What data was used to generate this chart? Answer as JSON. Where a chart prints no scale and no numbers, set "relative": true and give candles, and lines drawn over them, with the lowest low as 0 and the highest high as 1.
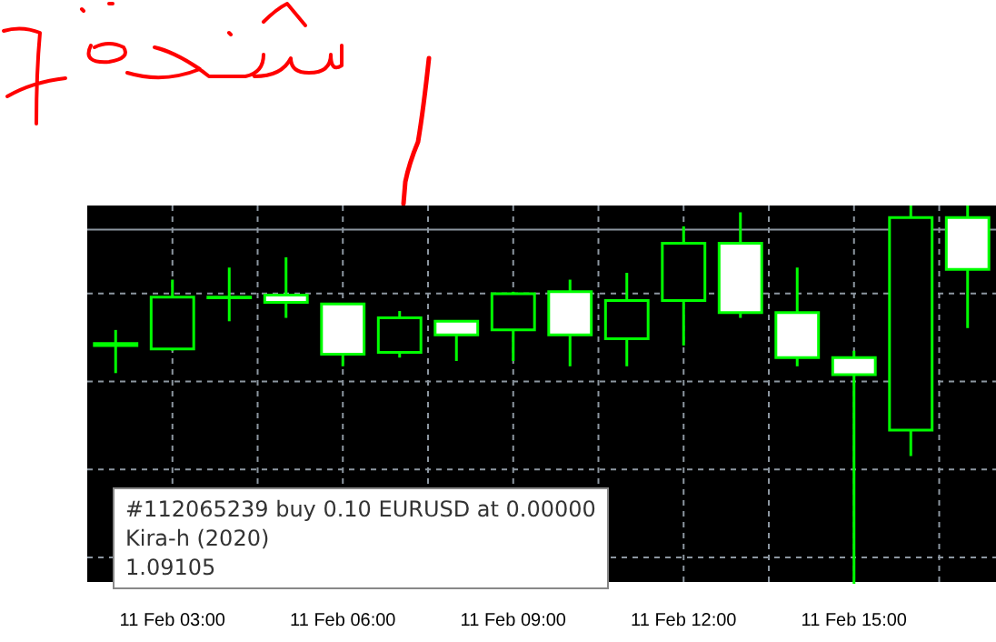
{
  "chart_data": {
    "type": "candlestick",
    "relative": true,
    "color": "#00ff00",
    "grid": true,
    "tick_labels": "x",
    "categories": [
      null,
      "11 Feb 03:00",
      null,
      null,
      "11 Feb 06:00",
      null,
      null,
      "11 Feb 09:00",
      null,
      null,
      "11 Feb 12:00",
      null,
      null,
      "11 Feb 15:00",
      null,
      null
    ],
    "ohlc": [
      [
        0.635,
        0.671,
        0.557,
        0.63
      ],
      [
        0.621,
        0.804,
        0.616,
        0.758
      ],
      [
        0.758,
        0.836,
        0.694,
        0.756
      ],
      [
        0.763,
        0.863,
        0.703,
        0.744
      ],
      [
        0.74,
        0.74,
        0.575,
        0.607
      ],
      [
        0.612,
        0.721,
        0.598,
        0.703
      ],
      [
        0.694,
        0.694,
        0.589,
        0.658
      ],
      [
        0.671,
        0.772,
        0.589,
        0.767
      ],
      [
        0.772,
        0.804,
        0.575,
        0.658
      ],
      [
        0.648,
        0.822,
        0.575,
        0.749
      ],
      [
        0.749,
        0.945,
        0.63,
        0.9
      ],
      [
        0.9,
        0.982,
        0.703,
        0.717
      ],
      [
        0.717,
        0.836,
        0.575,
        0.598
      ],
      [
        0.598,
        0.616,
        0,
        0.553
      ],
      [
        0.406,
        1,
        0.338,
        0.968
      ],
      [
        0.968,
        1,
        0.676,
        0.831
      ]
    ],
    "ref_lines": [
      {
        "axis": "y",
        "value": 0.936,
        "color": "#8c96a0"
      }
    ],
    "annotations": [
      "#112065239 buy 0.10 EURUSD at 0.00000",
      "Kira-h (2020)",
      "1.09105"
    ]
  }
}
